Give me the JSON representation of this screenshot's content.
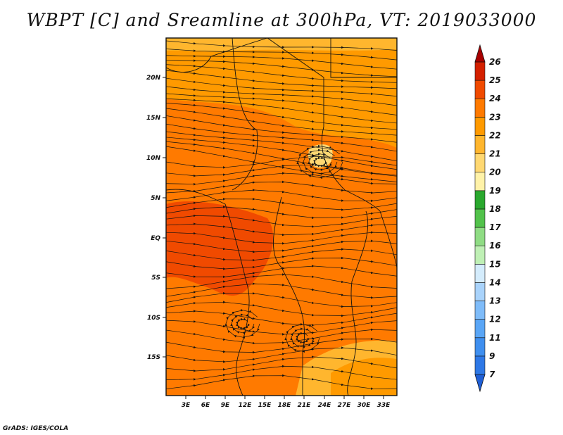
{
  "title": "WBPT [C] and Sreamline at 300hPa, VT: 2019033000",
  "credit": "GrADS: IGES/COLA",
  "axes": {
    "lat_labels": [
      "20N",
      "15N",
      "10N",
      "5N",
      "EQ",
      "5S",
      "10S",
      "15S"
    ],
    "lon_labels": [
      "3E",
      "6E",
      "9E",
      "12E",
      "15E",
      "18E",
      "21E",
      "24E",
      "27E",
      "30E",
      "33E"
    ]
  },
  "colorbar": {
    "labels": [
      "7",
      "9",
      "11",
      "12",
      "13",
      "14",
      "15",
      "16",
      "17",
      "18",
      "19",
      "20",
      "21",
      "22",
      "23",
      "24",
      "25",
      "26"
    ],
    "colors": [
      "#1f5fd6",
      "#2e78e6",
      "#3f8fef",
      "#5aa6f6",
      "#7fbcf9",
      "#a9d3fb",
      "#d4ecfc",
      "#bff0b5",
      "#8fdc84",
      "#52c24b",
      "#2aa82e",
      "#fff2a8",
      "#ffd872",
      "#ffb62e",
      "#ff9a00",
      "#ff7a00",
      "#f04a00",
      "#d42000",
      "#a80000"
    ]
  }
}
